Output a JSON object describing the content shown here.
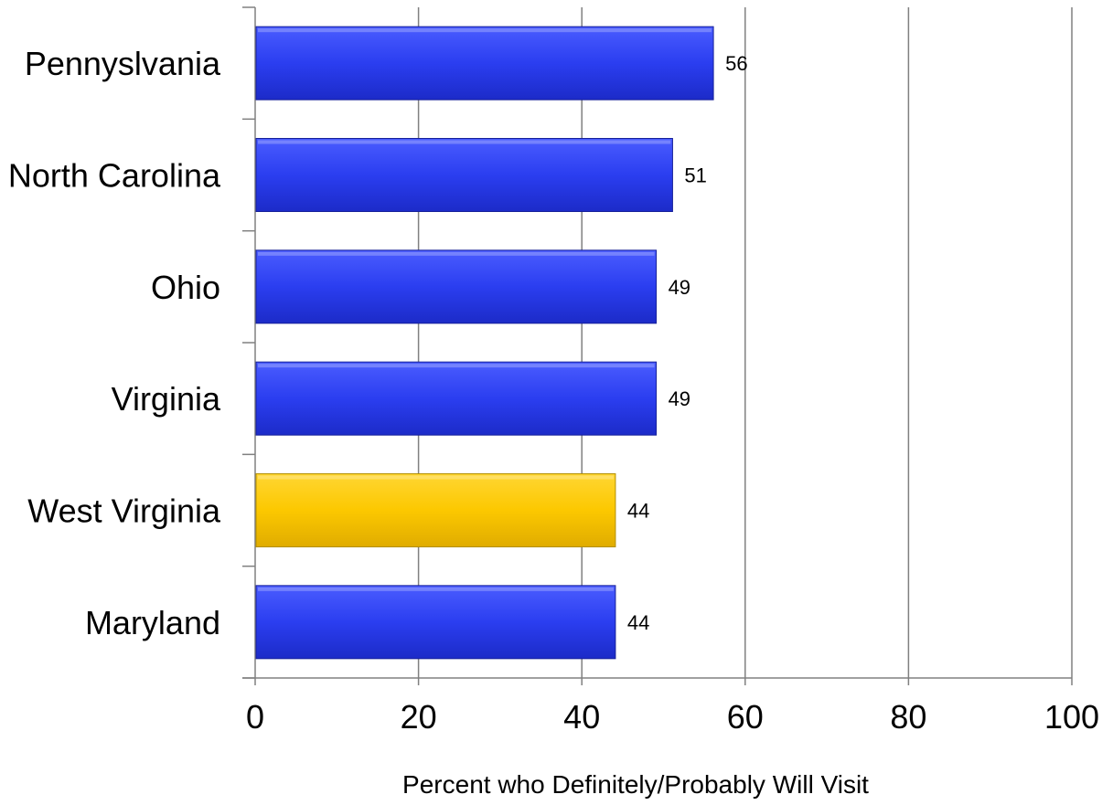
{
  "chart_data": {
    "type": "bar",
    "orientation": "horizontal",
    "categories": [
      "Pennyslvania",
      "North Carolina",
      "Ohio",
      "Virginia",
      "West Virginia",
      "Maryland"
    ],
    "values": [
      56,
      51,
      49,
      49,
      44,
      44
    ],
    "highlight_category": "West Virginia",
    "title": "",
    "xlabel": "Percent who Definitely/Probably Will Visit",
    "ylabel": "",
    "xlim": [
      0,
      100
    ],
    "xticks": [
      0,
      20,
      40,
      60,
      80,
      100
    ],
    "grid": "vertical",
    "legend": "none",
    "colors": {
      "bar": "#2b3ef0",
      "bar_highlight": "#fcc800",
      "grid": "#808080",
      "axis": "#808080"
    }
  }
}
